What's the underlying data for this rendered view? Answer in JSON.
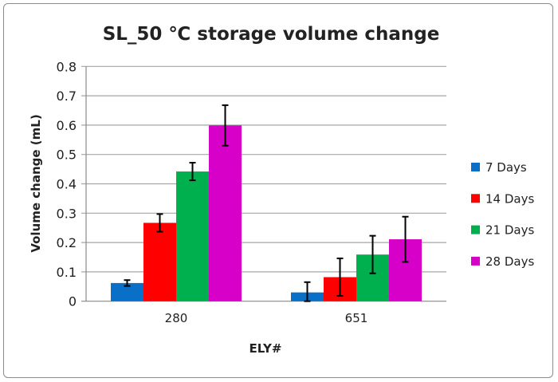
{
  "chart_data": {
    "type": "bar",
    "title": "SL_50 ℃ storage volume change",
    "xlabel": "ELY#",
    "ylabel": "Volume change (mL)",
    "ylim": [
      0,
      0.8
    ],
    "yticks": [
      "0",
      "0.1",
      "0.2",
      "0.3",
      "0.4",
      "0.5",
      "0.6",
      "0.7",
      "0.8"
    ],
    "grid": true,
    "legend_position": "right",
    "categories": [
      "280",
      "651"
    ],
    "series": [
      {
        "name": "7 Days",
        "color": "#0a6fc6",
        "values": [
          0.062,
          0.03
        ],
        "errors": [
          0.01,
          0.035
        ]
      },
      {
        "name": "14 Days",
        "color": "#ff0000",
        "values": [
          0.267,
          0.082
        ],
        "errors": [
          0.03,
          0.064
        ]
      },
      {
        "name": "21 Days",
        "color": "#00b04f",
        "values": [
          0.442,
          0.159
        ],
        "errors": [
          0.03,
          0.064
        ]
      },
      {
        "name": "28 Days",
        "color": "#d600c8",
        "values": [
          0.599,
          0.211
        ],
        "errors": [
          0.069,
          0.077
        ]
      }
    ]
  }
}
